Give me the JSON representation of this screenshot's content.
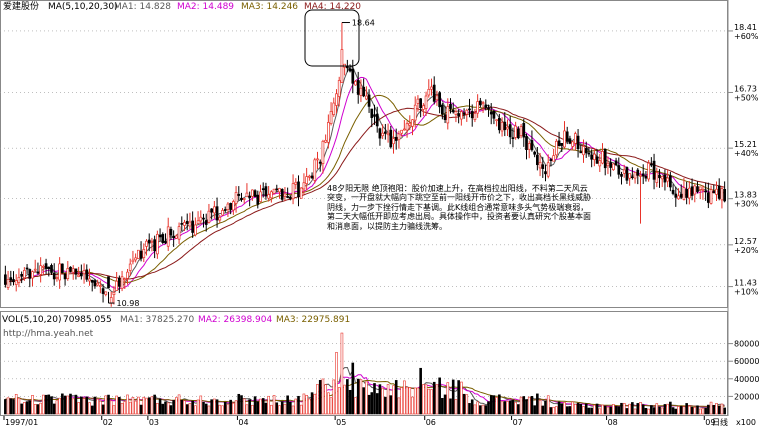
{
  "header": {
    "stock_name": "爱建股份",
    "ma_label": "MA(5,10,20,30)",
    "ma1": "MA1: 14.828",
    "ma2": "MA2: 14.489",
    "ma3": "MA3: 14.246",
    "ma4": "MA4: 14.220"
  },
  "volume_header": {
    "label": "VOL(5,10,20)",
    "value": "70985.055",
    "ma1": "MA1: 37825.270",
    "ma2": "MA2: 26398.904",
    "ma3": "MA3: 22975.891"
  },
  "watermark": "http://hma.yeah.net",
  "annotation": "48夕阳无限 绝顶袍阳：股价加速上升，在高档拉出阳线，不料第二天风云突变，一开盘就大幅向下跳空至前一阳线开市价之下，收出高档长黑线威胁阴线，力一步下挫行情走下基调。此K线组合通常意味多头气势极端衰弱，第二天大幅低开即应考虑出局。具体操作中，投资者要认真研究个股基本面和消息面，以提防主力骗线洗筹。",
  "colors": {
    "up": "#e8332a",
    "down": "#000000",
    "ma1": "#5a5a5a",
    "ma2": "#d000d0",
    "ma3": "#7a6000",
    "ma4": "#8b1a1a",
    "grid": "#999999"
  },
  "chart_data": [
    {
      "type": "candlestick",
      "title": "爱建股份",
      "y_ticks": [
        {
          "price": "18.41",
          "pct": "+60%"
        },
        {
          "price": "16.73",
          "pct": "+50%"
        },
        {
          "price": "15.21",
          "pct": "+40%"
        },
        {
          "price": "13.83",
          "pct": "+30%"
        },
        {
          "price": "12.57",
          "pct": "+20%"
        },
        {
          "price": "11.43",
          "pct": "+10%"
        }
      ],
      "ylim": [
        10.9,
        18.9
      ],
      "annotations": [
        {
          "text": "18.64",
          "value": 18.64,
          "type": "high",
          "x_index": 124
        },
        {
          "text": "10.98",
          "value": 10.98,
          "type": "low",
          "x_index": 38
        }
      ],
      "series_shape": [
        [
          0,
          11.7
        ],
        [
          10,
          11.8
        ],
        [
          20,
          11.85
        ],
        [
          30,
          11.7
        ],
        [
          38,
          11.2
        ],
        [
          45,
          11.9
        ],
        [
          52,
          12.45
        ],
        [
          60,
          12.9
        ],
        [
          68,
          13.0
        ],
        [
          76,
          13.35
        ],
        [
          84,
          13.8
        ],
        [
          92,
          13.85
        ],
        [
          100,
          13.95
        ],
        [
          108,
          14.1
        ],
        [
          116,
          14.9
        ],
        [
          124,
          17.4
        ],
        [
          132,
          16.6
        ],
        [
          138,
          15.6
        ],
        [
          144,
          15.4
        ],
        [
          150,
          16.1
        ],
        [
          156,
          16.8
        ],
        [
          162,
          16.2
        ],
        [
          170,
          16.1
        ],
        [
          176,
          16.5
        ],
        [
          182,
          15.8
        ],
        [
          190,
          15.6
        ],
        [
          198,
          14.5
        ],
        [
          206,
          15.6
        ],
        [
          214,
          15.2
        ],
        [
          222,
          14.8
        ],
        [
          230,
          14.5
        ],
        [
          238,
          14.6
        ],
        [
          246,
          14.1
        ],
        [
          254,
          14.0
        ],
        [
          262,
          13.9
        ]
      ]
    },
    {
      "type": "bar",
      "title": "VOL(5,10,20)",
      "y_ticks": [
        "80000",
        "60000",
        "40000",
        "20000",
        "x100"
      ],
      "ylim": [
        0,
        100000
      ],
      "x_ticks": [
        {
          "label": "1997/01",
          "x_index": 0
        },
        {
          "label": "02",
          "x_index": 36
        },
        {
          "label": "03",
          "x_index": 53
        },
        {
          "label": "04",
          "x_index": 86
        },
        {
          "label": "05",
          "x_index": 122
        },
        {
          "label": "06",
          "x_index": 155
        },
        {
          "label": "07",
          "x_index": 187
        },
        {
          "label": "08",
          "x_index": 222
        },
        {
          "label": "09",
          "x_index": 258
        }
      ],
      "x_axis_label": "日线"
    }
  ]
}
